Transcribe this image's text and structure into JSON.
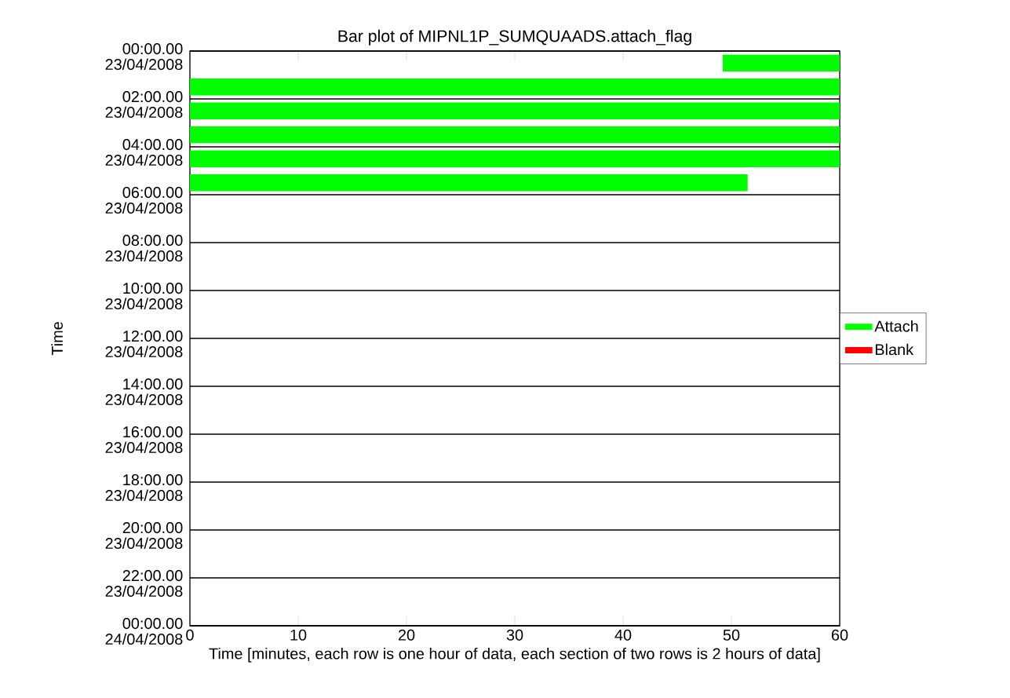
{
  "chart_data": {
    "type": "bar",
    "orientation": "horizontal",
    "title": "Bar plot of MIPNL1P_SUMQUAADS.attach_flag",
    "xlabel": "Time [minutes, each row is one hour of data, each section of two rows is 2 hours of data]",
    "ylabel": "Time",
    "x": [
      "2008-04-23T00:30",
      "2008-04-23T01:30",
      "2008-04-23T02:30",
      "2008-04-23T03:30",
      "2008-04-23T04:30",
      "2008-04-23T05:30"
    ],
    "series": [
      {
        "name": "Attach",
        "color": "#00ff00",
        "base": [
          49.2,
          0,
          0,
          0,
          0,
          0
        ],
        "values": [
          10.8,
          60,
          60,
          60,
          60,
          51.5
        ]
      },
      {
        "name": "Blank",
        "color": "#ff0000",
        "values": [
          null,
          null,
          null,
          null,
          null,
          null
        ]
      }
    ],
    "xlim": [
      0,
      60
    ],
    "xticks": [
      0,
      10,
      20,
      30,
      40,
      50,
      60
    ],
    "ylim": [
      "2008-04-24T00:00",
      "2008-04-23T00:00"
    ],
    "yticks": [
      {
        "value": "2008-04-23T00:00",
        "label": "00:00.00 23/04/2008"
      },
      {
        "value": "2008-04-23T02:00",
        "label": "02:00.00 23/04/2008"
      },
      {
        "value": "2008-04-23T04:00",
        "label": "04:00.00 23/04/2008"
      },
      {
        "value": "2008-04-23T06:00",
        "label": "06:00.00 23/04/2008"
      },
      {
        "value": "2008-04-23T08:00",
        "label": "08:00.00 23/04/2008"
      },
      {
        "value": "2008-04-23T10:00",
        "label": "10:00.00 23/04/2008"
      },
      {
        "value": "2008-04-23T12:00",
        "label": "12:00.00 23/04/2008"
      },
      {
        "value": "2008-04-23T14:00",
        "label": "14:00.00 23/04/2008"
      },
      {
        "value": "2008-04-23T16:00",
        "label": "16:00.00 23/04/2008"
      },
      {
        "value": "2008-04-23T18:00",
        "label": "18:00.00 23/04/2008"
      },
      {
        "value": "2008-04-23T20:00",
        "label": "20:00.00 23/04/2008"
      },
      {
        "value": "2008-04-23T22:00",
        "label": "22:00.00 23/04/2008"
      },
      {
        "value": "2008-04-24T00:00",
        "label": "00:00.00 24/04/2008"
      }
    ],
    "grid": "y",
    "legend": "right"
  }
}
